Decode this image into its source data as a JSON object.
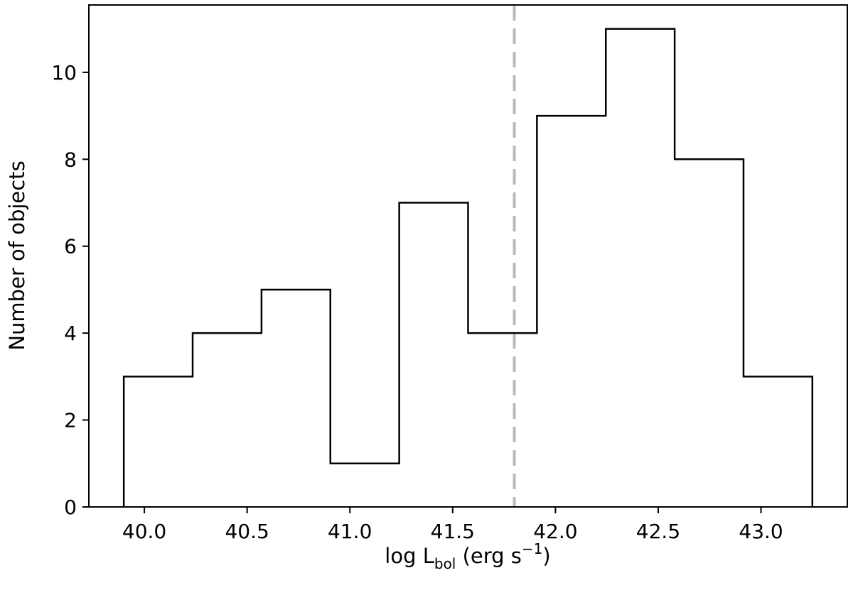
{
  "chart_data": {
    "type": "histogram",
    "bin_edges": [
      39.9,
      40.235,
      40.57,
      40.905,
      41.24,
      41.575,
      41.91,
      42.245,
      42.58,
      42.915,
      43.25
    ],
    "counts": [
      3,
      4,
      5,
      1,
      7,
      4,
      9,
      11,
      8,
      3
    ],
    "xlim": [
      39.73,
      43.42
    ],
    "ylim": [
      0,
      11.55
    ],
    "x_ticks": [
      "40.0",
      "40.5",
      "41.0",
      "41.5",
      "42.0",
      "42.5",
      "43.0"
    ],
    "y_ticks": [
      "0",
      "2",
      "4",
      "6",
      "8",
      "10"
    ],
    "xlabel": {
      "main": "log L",
      "sub": "bol",
      "rest": " (erg s",
      "sup": "−1",
      "close": ")"
    },
    "ylabel": "Number of objects",
    "vline": {
      "x": 41.8,
      "style": "dashed",
      "color": "#bbbbbb"
    },
    "line_color": "#000000",
    "grid": false
  }
}
